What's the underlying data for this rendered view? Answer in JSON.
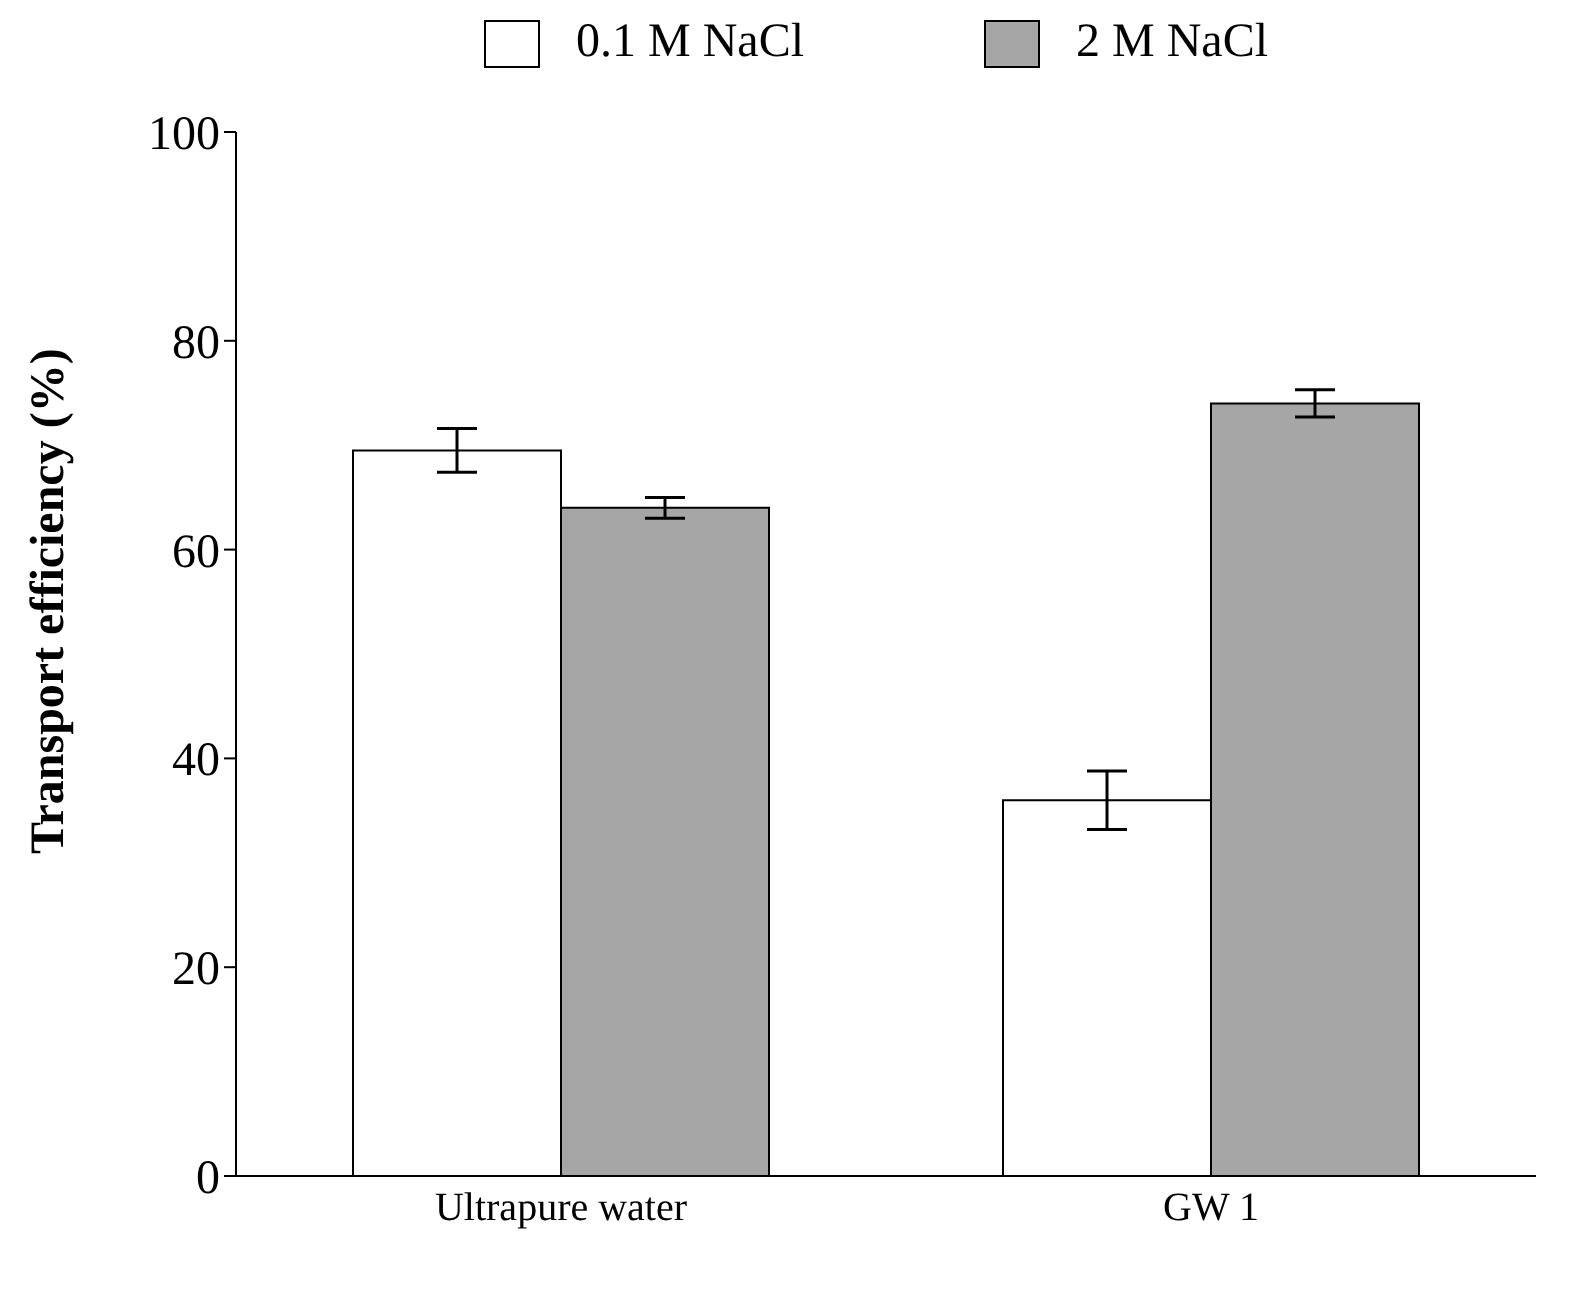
{
  "chart_data": {
    "type": "bar",
    "ylabel": "Transport efficiency  (%)",
    "categories": [
      "Ultrapure water",
      "GW 1"
    ],
    "series": [
      {
        "name": "0.1 M NaCl",
        "color": "#ffffff",
        "values": [
          69.5,
          36
        ],
        "errors": [
          2.1,
          2.8
        ]
      },
      {
        "name": "2 M NaCl",
        "color": "#a6a6a6",
        "values": [
          64,
          74
        ],
        "errors": [
          1.0,
          1.3
        ]
      }
    ],
    "ylim": [
      0,
      100
    ],
    "yticks": [
      0,
      20,
      40,
      60,
      80,
      100
    ],
    "grid": false,
    "legend": "top"
  }
}
